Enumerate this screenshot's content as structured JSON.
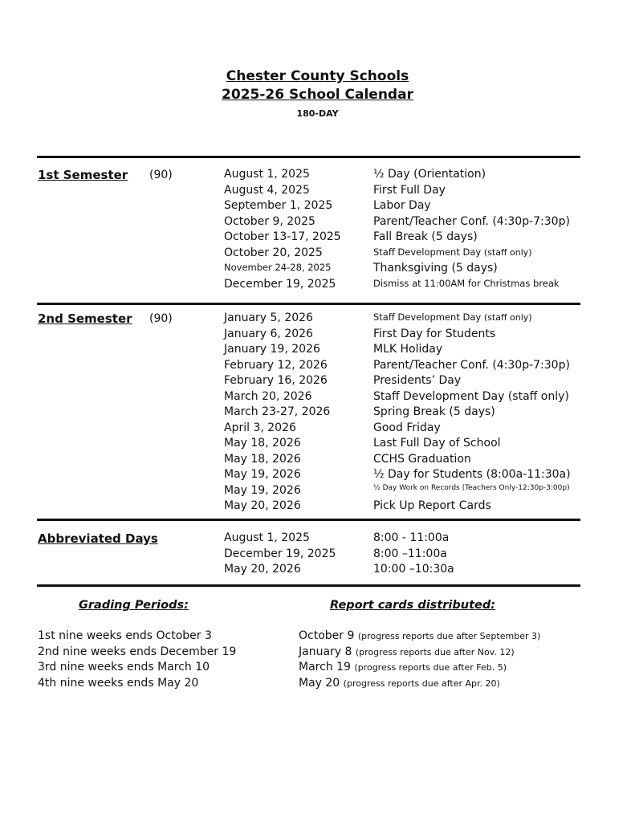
{
  "header": {
    "title1": "Chester County Schools",
    "title2": "2025-26 School Calendar",
    "subtitle": "180-DAY"
  },
  "sem1": {
    "label": "1st Semester",
    "count": "(90)",
    "rows": [
      {
        "date": "August 1, 2025",
        "event": "½ Day (Orientation)"
      },
      {
        "date": "August 4, 2025",
        "event": "First Full Day"
      },
      {
        "date": "September 1, 2025",
        "event": "Labor Day"
      },
      {
        "date": "October 9, 2025",
        "event": "Parent/Teacher Conf. (4:30p-7:30p)"
      },
      {
        "date": "October 13-17, 2025",
        "event": "Fall Break (5 days)"
      },
      {
        "date": "October 20, 2025",
        "event": "Staff Development Day",
        "note": "(staff only)"
      },
      {
        "date": "November 24-28, 2025",
        "event": "Thanksgiving (5 days)"
      },
      {
        "date": "December 19, 2025",
        "event": "Dismiss at 11:00AM for Christmas break"
      }
    ]
  },
  "sem2": {
    "label": "2nd Semester",
    "count": "(90)",
    "rows": [
      {
        "date": "January 5, 2026",
        "event": "Staff Development Day",
        "note": "(staff only)"
      },
      {
        "date": "January 6, 2026",
        "event": "First Day for Students"
      },
      {
        "date": "January 19, 2026",
        "event": "MLK Holiday"
      },
      {
        "date": "February 12, 2026",
        "event": "Parent/Teacher Conf. (4:30p-7:30p)"
      },
      {
        "date": "February 16, 2026",
        "event": "Presidents’ Day"
      },
      {
        "date": "March 20, 2026",
        "event": "Staff Development Day (staff only)"
      },
      {
        "date": "March 23-27, 2026",
        "event": "Spring Break (5 days)"
      },
      {
        "date": "April 3, 2026",
        "event": "Good Friday"
      },
      {
        "date": "May 18, 2026",
        "event": "Last Full Day of School"
      },
      {
        "date": "May 18, 2026",
        "event": "CCHS Graduation"
      },
      {
        "date": "May 19, 2026",
        "event": "½ Day for Students (8:00a-11:30a)"
      },
      {
        "date": "May 19, 2026",
        "event": "½ Day Work on Records (Teachers Only-12:30p-3:00p)"
      },
      {
        "date": "May 20, 2026",
        "event": "Pick Up Report Cards"
      }
    ]
  },
  "abbrev": {
    "label": "Abbreviated Days",
    "rows": [
      {
        "date": "August 1, 2025",
        "event": "8:00 - 11:00a"
      },
      {
        "date": "December 19, 2025",
        "event": "8:00 –11:00a"
      },
      {
        "date": "May 20, 2026",
        "event": "10:00 –10:30a"
      }
    ]
  },
  "grading": {
    "heading": "Grading Periods:",
    "items": [
      "1st nine weeks ends October 3",
      "2nd nine weeks ends December 19",
      "3rd nine weeks ends March 10",
      "4th nine weeks ends May 20"
    ]
  },
  "reports": {
    "heading": "Report cards distributed:",
    "items": [
      {
        "date": "October 9",
        "note": "(progress reports due after September 3)"
      },
      {
        "date": "January 8",
        "note": "(progress reports due after Nov. 12)"
      },
      {
        "date": "March 19",
        "note": "(progress reports due after Feb. 5)"
      },
      {
        "date": "May 20",
        "note": "(progress reports due after Apr. 20)"
      }
    ]
  }
}
